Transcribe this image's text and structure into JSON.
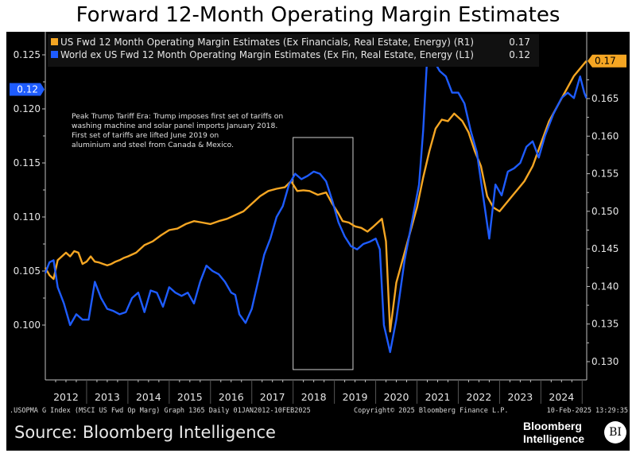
{
  "title": "Forward 12-Month Operating Margin Estimates",
  "source": "Source: Bloomberg Intelligence",
  "brand": {
    "line1": "Bloomberg",
    "line2": "Intelligence",
    "badge": "BI"
  },
  "footer": {
    "index_info": ".USOPMA G Index (MSCI US Fwd Op Marg) Graph 1365  Daily 01JAN2012-10FEB2025",
    "copyright": "Copyright© 2025 Bloomberg Finance L.P.",
    "timestamp": "10-Feb-2025 13:29:35"
  },
  "chart_data": {
    "type": "line",
    "title": "Forward 12-Month Operating Margin Estimates",
    "x_range": [
      2012.0,
      2025.11
    ],
    "x_tick_labels": [
      "2012",
      "2013",
      "2014",
      "2015",
      "2016",
      "2017",
      "2018",
      "2019",
      "2020",
      "2021",
      "2022",
      "2023",
      "2024"
    ],
    "left_axis": {
      "ticks": [
        0.1,
        0.105,
        0.11,
        0.115,
        0.12,
        0.125
      ],
      "tick_labels": [
        "0.100",
        "0.105",
        "0.110",
        "0.115",
        "0.120",
        "0.125"
      ],
      "range": [
        0.0955,
        0.1265
      ]
    },
    "right_axis": {
      "ticks": [
        0.13,
        0.135,
        0.14,
        0.145,
        0.15,
        0.155,
        0.16,
        0.165
      ],
      "tick_labels": [
        "0.130",
        "0.135",
        "0.140",
        "0.145",
        "0.150",
        "0.155",
        "0.160",
        "0.165"
      ],
      "range": [
        0.129,
        0.1725
      ]
    },
    "grid": false,
    "legend_position": "top-left",
    "series": [
      {
        "name": "US Fwd 12 Month Operating Margin Estimates (Ex Financials, Real Estate, Energy) (R1)",
        "last_value_label": "0.17",
        "axis": "right",
        "color": "#f5a623",
        "x": [
          2012.0,
          2012.1,
          2012.2,
          2012.3,
          2012.4,
          2012.5,
          2012.6,
          2012.7,
          2012.8,
          2012.9,
          2013.0,
          2013.1,
          2013.2,
          2013.3,
          2013.4,
          2013.5,
          2013.6,
          2013.7,
          2013.8,
          2013.9,
          2014.0,
          2014.2,
          2014.4,
          2014.6,
          2014.8,
          2015.0,
          2015.2,
          2015.4,
          2015.6,
          2015.8,
          2016.0,
          2016.2,
          2016.4,
          2016.6,
          2016.8,
          2017.0,
          2017.2,
          2017.4,
          2017.6,
          2017.8,
          2017.95,
          2018.1,
          2018.25,
          2018.4,
          2018.6,
          2018.8,
          2018.95,
          2019.1,
          2019.2,
          2019.35,
          2019.5,
          2019.65,
          2019.8,
          2019.95,
          2020.05,
          2020.15,
          2020.25,
          2020.35,
          2020.5,
          2020.65,
          2020.8,
          2021.0,
          2021.15,
          2021.3,
          2021.45,
          2021.6,
          2021.75,
          2021.9,
          2022.0,
          2022.1,
          2022.25,
          2022.4,
          2022.55,
          2022.7,
          2022.85,
          2023.0,
          2023.15,
          2023.3,
          2023.45,
          2023.6,
          2023.8,
          2024.0,
          2024.2,
          2024.4,
          2024.6,
          2024.8,
          2024.95,
          2025.1
        ],
        "values": [
          0.1425,
          0.1415,
          0.141,
          0.1435,
          0.144,
          0.1445,
          0.144,
          0.1447,
          0.1445,
          0.143,
          0.1433,
          0.144,
          0.1433,
          0.1432,
          0.143,
          0.1428,
          0.143,
          0.1433,
          0.1435,
          0.1438,
          0.144,
          0.1445,
          0.1455,
          0.146,
          0.1468,
          0.1475,
          0.1477,
          0.1483,
          0.1487,
          0.1485,
          0.1483,
          0.1487,
          0.149,
          0.1495,
          0.15,
          0.151,
          0.152,
          0.1527,
          0.153,
          0.1532,
          0.154,
          0.1527,
          0.1528,
          0.1527,
          0.1522,
          0.1525,
          0.151,
          0.1497,
          0.1487,
          0.1485,
          0.148,
          0.1478,
          0.1473,
          0.148,
          0.1485,
          0.149,
          0.146,
          0.134,
          0.1405,
          0.1435,
          0.1465,
          0.1505,
          0.1545,
          0.158,
          0.161,
          0.1622,
          0.162,
          0.163,
          0.1625,
          0.162,
          0.1605,
          0.158,
          0.156,
          0.152,
          0.1505,
          0.15,
          0.151,
          0.152,
          0.153,
          0.154,
          0.156,
          0.159,
          0.162,
          0.164,
          0.166,
          0.168,
          0.169,
          0.17
        ]
      },
      {
        "name": "World ex US Fwd 12 Month Operating Margin Estimates (Ex Fin, Real Estate, Energy (L1)",
        "last_value_label": "0.12",
        "axis": "left",
        "color": "#1e5cff",
        "x": [
          2012.0,
          2012.1,
          2012.2,
          2012.3,
          2012.45,
          2012.6,
          2012.75,
          2012.9,
          2013.05,
          2013.2,
          2013.35,
          2013.5,
          2013.65,
          2013.8,
          2013.95,
          2014.1,
          2014.25,
          2014.4,
          2014.55,
          2014.7,
          2014.85,
          2015.0,
          2015.15,
          2015.3,
          2015.45,
          2015.6,
          2015.75,
          2015.9,
          2016.05,
          2016.2,
          2016.35,
          2016.5,
          2016.6,
          2016.7,
          2016.85,
          2017.0,
          2017.15,
          2017.3,
          2017.45,
          2017.6,
          2017.75,
          2017.9,
          2018.05,
          2018.2,
          2018.35,
          2018.5,
          2018.65,
          2018.8,
          2018.95,
          2019.1,
          2019.25,
          2019.4,
          2019.55,
          2019.7,
          2019.85,
          2020.0,
          2020.1,
          2020.2,
          2020.35,
          2020.5,
          2020.7,
          2020.9,
          2021.05,
          2021.15,
          2021.25,
          2021.4,
          2021.55,
          2021.7,
          2021.85,
          2022.0,
          2022.15,
          2022.3,
          2022.45,
          2022.6,
          2022.75,
          2022.9,
          2023.05,
          2023.2,
          2023.35,
          2023.5,
          2023.65,
          2023.8,
          2023.95,
          2024.1,
          2024.3,
          2024.5,
          2024.65,
          2024.8,
          2024.95,
          2025.05,
          2025.1
        ],
        "values": [
          0.1048,
          0.1058,
          0.106,
          0.1035,
          0.102,
          0.1,
          0.101,
          0.1005,
          0.1005,
          0.104,
          0.1025,
          0.1015,
          0.1013,
          0.101,
          0.1012,
          0.1025,
          0.103,
          0.1012,
          0.1032,
          0.103,
          0.1017,
          0.1035,
          0.103,
          0.1027,
          0.103,
          0.102,
          0.104,
          0.1055,
          0.105,
          0.1047,
          0.104,
          0.103,
          0.1028,
          0.101,
          0.1002,
          0.1015,
          0.104,
          0.1065,
          0.108,
          0.11,
          0.111,
          0.113,
          0.114,
          0.1135,
          0.1138,
          0.1142,
          0.114,
          0.1133,
          0.1115,
          0.1095,
          0.1082,
          0.1073,
          0.107,
          0.1075,
          0.1077,
          0.108,
          0.107,
          0.1,
          0.0975,
          0.1005,
          0.106,
          0.11,
          0.113,
          0.118,
          0.125,
          0.1245,
          0.1235,
          0.123,
          0.1215,
          0.1215,
          0.1205,
          0.118,
          0.116,
          0.112,
          0.108,
          0.113,
          0.112,
          0.1142,
          0.1145,
          0.115,
          0.1165,
          0.117,
          0.1155,
          0.1175,
          0.1195,
          0.121,
          0.1215,
          0.121,
          0.123,
          0.1215,
          0.121
        ]
      }
    ],
    "annotations": [
      {
        "type": "text",
        "text_lines": [
          "Peak Trump Tariff Era: Trump imposes first set of tariffs on",
          "washing machine and solar panel imports January 2018.",
          "First set of tariffs are lifted June 2019 on",
          "aluminium and steel from Canada & Mexico."
        ]
      },
      {
        "type": "box",
        "x_range": [
          2018.0,
          2019.45
        ],
        "label": "tariff era highlight"
      }
    ],
    "last_value_tags": {
      "left": "0.12",
      "right": "0.17"
    },
    "colors": {
      "background": "#000000",
      "axis": "#bfbfbf",
      "text": "#e6e6e6",
      "legend_bg": "#111111"
    }
  }
}
